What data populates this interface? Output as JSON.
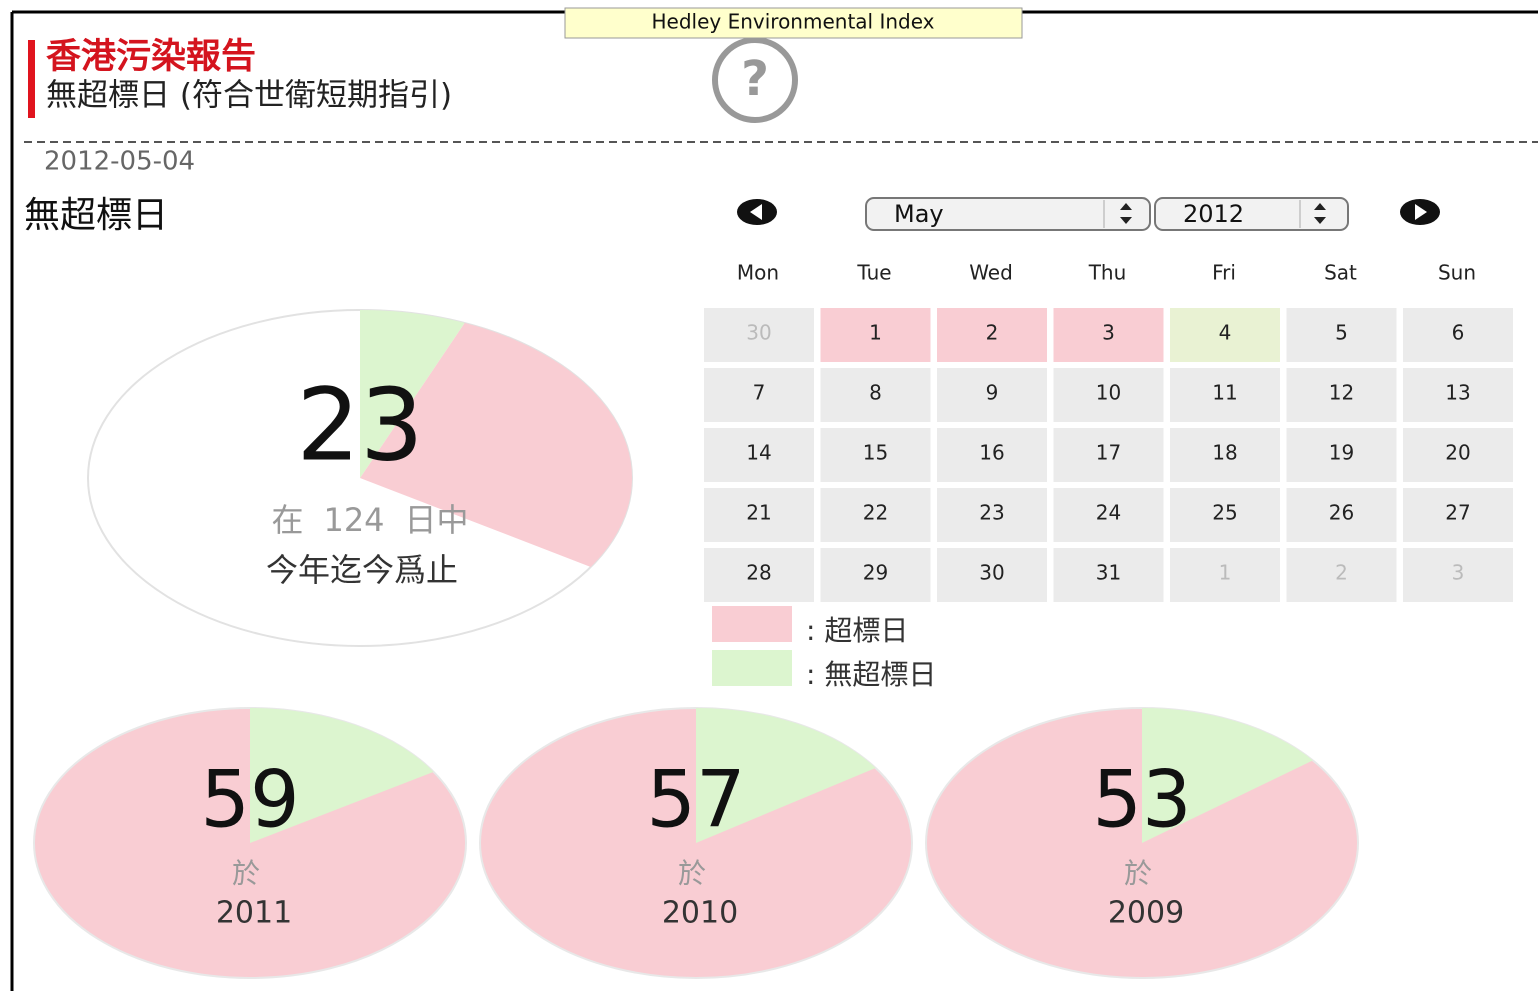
{
  "tooltip": "Hedley Environmental Index",
  "header": {
    "title": "香港污染報告",
    "subtitle": "無超標日 (符合世衛短期指引)"
  },
  "date": "2012-05-04",
  "heading": "無超標日",
  "colors": {
    "exceed": "#f9cdd3",
    "ok": "#dcf5cf",
    "empty": "#ffffff"
  },
  "current": {
    "value": 23,
    "prefix": "在",
    "total": 124,
    "unit": "日中",
    "caption": "今年迄今爲止"
  },
  "calendar": {
    "month": "May",
    "year": 2012,
    "weekdays": [
      "Mon",
      "Tue",
      "Wed",
      "Thu",
      "Fri",
      "Sat",
      "Sun"
    ],
    "cell_color": "#ebebeb",
    "weeks": [
      [
        {
          "day": 30,
          "muted": true
        },
        {
          "day": 1,
          "color": "#f9cdd3"
        },
        {
          "day": 2,
          "color": "#f9cdd3"
        },
        {
          "day": 3,
          "color": "#f9cdd3"
        },
        {
          "day": 4,
          "color": "#e9f2d3"
        },
        {
          "day": 5
        },
        {
          "day": 6
        }
      ],
      [
        {
          "day": 7
        },
        {
          "day": 8
        },
        {
          "day": 9
        },
        {
          "day": 10
        },
        {
          "day": 11
        },
        {
          "day": 12
        },
        {
          "day": 13
        }
      ],
      [
        {
          "day": 14
        },
        {
          "day": 15
        },
        {
          "day": 16
        },
        {
          "day": 17
        },
        {
          "day": 18
        },
        {
          "day": 19
        },
        {
          "day": 20
        }
      ],
      [
        {
          "day": 21
        },
        {
          "day": 22
        },
        {
          "day": 23
        },
        {
          "day": 24
        },
        {
          "day": 25
        },
        {
          "day": 26
        },
        {
          "day": 27
        }
      ],
      [
        {
          "day": 28
        },
        {
          "day": 29
        },
        {
          "day": 30
        },
        {
          "day": 31
        },
        {
          "day": 1,
          "muted": true
        },
        {
          "day": 2,
          "muted": true
        },
        {
          "day": 3,
          "muted": true
        }
      ]
    ]
  },
  "legend": [
    {
      "label": ": 超標日",
      "color": "#f9cdd3"
    },
    {
      "label": ": 無超標日",
      "color": "#dcf5cf"
    }
  ],
  "history": [
    {
      "value": 59,
      "prefix": "於",
      "year": 2011
    },
    {
      "value": 57,
      "prefix": "於",
      "year": 2010
    },
    {
      "value": 53,
      "prefix": "於",
      "year": 2009
    }
  ]
}
